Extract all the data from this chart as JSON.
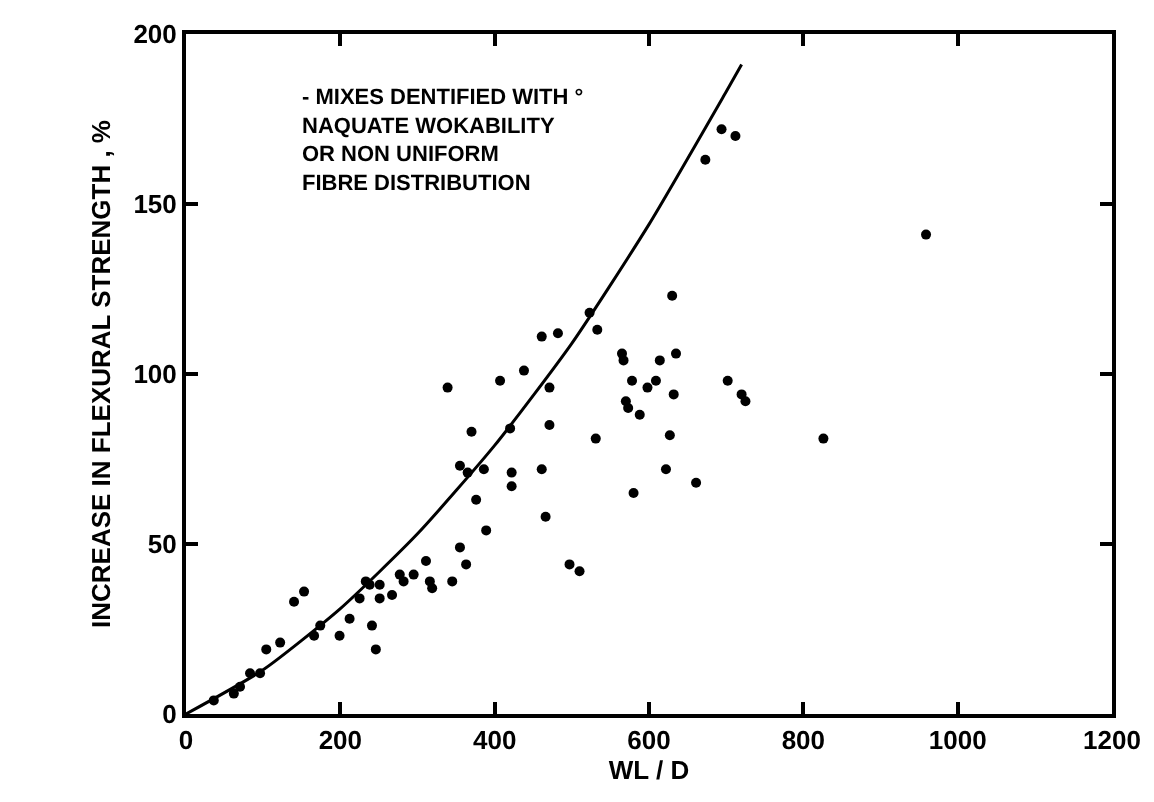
{
  "chart_data": {
    "type": "scatter",
    "xlabel": "WL / D",
    "ylabel": "INCREASE IN FLEXURAL STRENGTH , %",
    "annotations": [
      "- MIXES DENTIFIED WITH °\nNAQUATE WOKABILITY\nOR NON UNIFORM\nFIBRE DISTRIBUTION"
    ],
    "xlim": [
      0,
      1200
    ],
    "xticks": [
      0,
      200,
      400,
      600,
      800,
      1000,
      1200
    ],
    "ylim": [
      0,
      200
    ],
    "yticks": [
      0,
      50,
      100,
      150,
      200
    ],
    "marker": "circle",
    "series": [
      {
        "color": "#000000",
        "x": [
          36,
          70,
          83,
          96,
          62,
          104,
          122,
          140,
          153,
          166,
          174,
          199,
          212,
          225,
          233,
          238,
          251,
          241,
          246,
          251,
          267,
          277,
          282,
          295,
          311,
          316,
          319,
          345,
          355,
          363,
          389,
          376,
          355,
          365,
          386,
          339,
          407,
          420,
          422,
          422,
          370,
          438,
          461,
          466,
          497,
          510,
          471,
          471,
          461,
          482,
          523,
          533,
          565,
          567,
          578,
          598,
          609,
          570,
          573,
          588,
          531,
          580,
          622,
          627,
          630,
          635,
          632,
          661,
          702,
          720,
          725,
          694,
          712,
          673,
          826,
          959,
          614
        ],
        "values": [
          4,
          8,
          12,
          12,
          6,
          19,
          21,
          33,
          36,
          23,
          26,
          23,
          28,
          34,
          39,
          38,
          38,
          26,
          19,
          34,
          35,
          41,
          39,
          41,
          45,
          39,
          37,
          39,
          49,
          44,
          54,
          63,
          73,
          71,
          72,
          96,
          98,
          84,
          71,
          67,
          83,
          101,
          72,
          58,
          44,
          42,
          85,
          96,
          111,
          112,
          118,
          113,
          106,
          104,
          98,
          96,
          98,
          92,
          90,
          88,
          81,
          65,
          72,
          82,
          123,
          106,
          94,
          68,
          98,
          94,
          92,
          172,
          170,
          163,
          81,
          141,
          104
        ]
      },
      {
        "type": "line",
        "color": "#000000",
        "marker": "none",
        "x": [
          0,
          100,
          200,
          300,
          400,
          500,
          600,
          700,
          720
        ],
        "values": [
          0,
          13,
          31,
          53,
          79,
          109,
          144,
          183,
          191
        ]
      }
    ]
  }
}
